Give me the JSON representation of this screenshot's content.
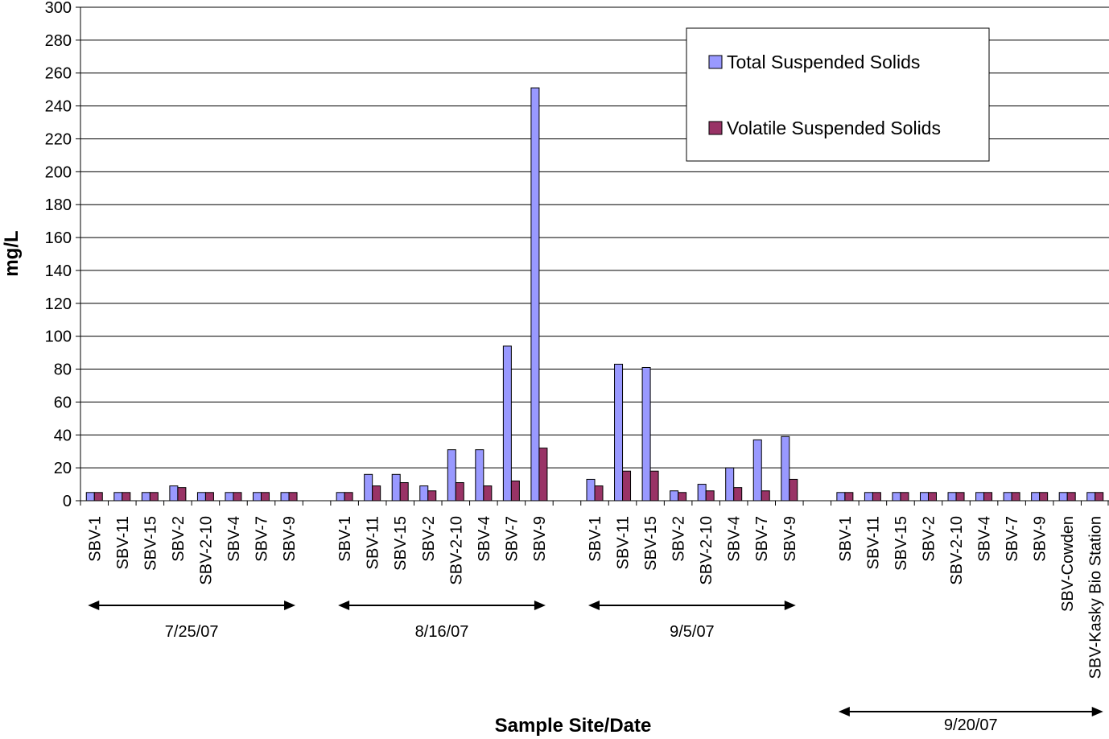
{
  "chart_data": {
    "type": "bar",
    "xlabel": "Sample Site/Date",
    "ylabel": "mg/L",
    "ylim": [
      0,
      300
    ],
    "ytick_step": 20,
    "grid": "horizontal",
    "legend_position": "top-right",
    "groups": [
      {
        "date": "7/25/07",
        "categories": [
          "SBV-1",
          "SBV-11",
          "SBV-15",
          "SBV-2",
          "SBV-2-10",
          "SBV-4",
          "SBV-7",
          "SBV-9"
        ],
        "tss": [
          5,
          5,
          5,
          9,
          5,
          5,
          5,
          5
        ],
        "vss": [
          5,
          5,
          5,
          8,
          5,
          5,
          5,
          5
        ]
      },
      {
        "date": "8/16/07",
        "categories": [
          "SBV-1",
          "SBV-11",
          "SBV-15",
          "SBV-2",
          "SBV-2-10",
          "SBV-4",
          "SBV-7",
          "SBV-9"
        ],
        "tss": [
          5,
          16,
          16,
          9,
          31,
          31,
          94,
          251
        ],
        "vss": [
          5,
          9,
          11,
          6,
          11,
          9,
          12,
          32
        ]
      },
      {
        "date": "9/5/07",
        "categories": [
          "SBV-1",
          "SBV-11",
          "SBV-15",
          "SBV-2",
          "SBV-2-10",
          "SBV-4",
          "SBV-7",
          "SBV-9"
        ],
        "tss": [
          13,
          83,
          81,
          6,
          10,
          20,
          37,
          39
        ],
        "vss": [
          9,
          18,
          18,
          5,
          6,
          8,
          6,
          13
        ]
      },
      {
        "date": "9/20/07",
        "categories": [
          "SBV-1",
          "SBV-11",
          "SBV-15",
          "SBV-2",
          "SBV-2-10",
          "SBV-4",
          "SBV-7",
          "SBV-9",
          "SBV-Cowden",
          "SBV-Kasky Bio Station"
        ],
        "tss": [
          5,
          5,
          5,
          5,
          5,
          5,
          5,
          5,
          5,
          5
        ],
        "vss": [
          5,
          5,
          5,
          5,
          5,
          5,
          5,
          5,
          5,
          5
        ]
      }
    ],
    "series": [
      {
        "name": "Total Suspended Solids",
        "key": "tss",
        "color": "#9999FF"
      },
      {
        "name": "Volatile Suspended Solids",
        "key": "vss",
        "color": "#993366"
      }
    ]
  }
}
